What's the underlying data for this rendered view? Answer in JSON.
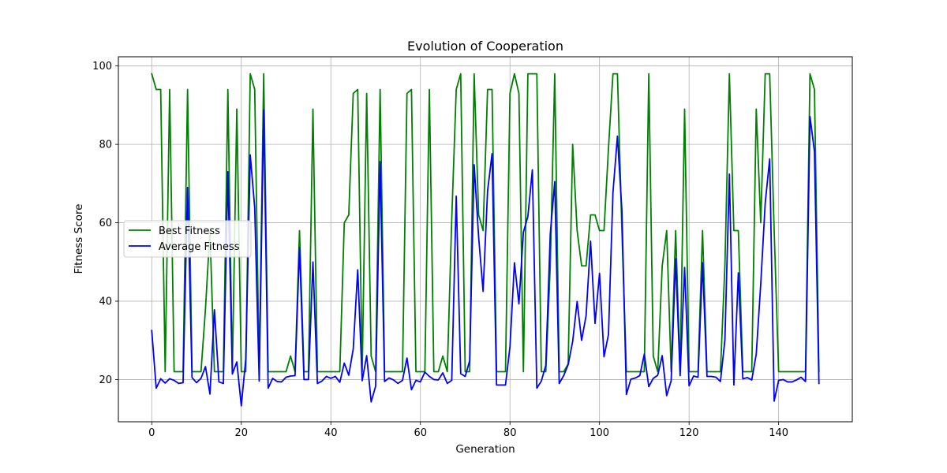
{
  "chart_data": {
    "type": "line",
    "title": "Evolution of Cooperation",
    "xlabel": "Generation",
    "ylabel": "Fitness Score",
    "xlim": [
      -7.45,
      156.45
    ],
    "ylim": [
      9.23,
      102.35
    ],
    "xticks": [
      0,
      20,
      40,
      60,
      80,
      100,
      120,
      140
    ],
    "yticks": [
      20,
      40,
      60,
      80,
      100
    ],
    "grid": true,
    "legend": {
      "placement": "center-left",
      "entries": [
        "Best Fitness",
        "Average Fitness"
      ]
    },
    "x": [
      0,
      1,
      2,
      3,
      4,
      5,
      6,
      7,
      8,
      9,
      10,
      11,
      12,
      13,
      14,
      15,
      16,
      17,
      18,
      19,
      20,
      21,
      22,
      23,
      24,
      25,
      26,
      27,
      28,
      29,
      30,
      31,
      32,
      33,
      34,
      35,
      36,
      37,
      38,
      39,
      40,
      41,
      42,
      43,
      44,
      45,
      46,
      47,
      48,
      49,
      50,
      51,
      52,
      53,
      54,
      55,
      56,
      57,
      58,
      59,
      60,
      61,
      62,
      63,
      64,
      65,
      66,
      67,
      68,
      69,
      70,
      71,
      72,
      73,
      74,
      75,
      76,
      77,
      78,
      79,
      80,
      81,
      82,
      83,
      84,
      85,
      86,
      87,
      88,
      89,
      90,
      91,
      92,
      93,
      94,
      95,
      96,
      97,
      98,
      99,
      100,
      101,
      102,
      103,
      104,
      105,
      106,
      107,
      108,
      109,
      110,
      111,
      112,
      113,
      114,
      115,
      116,
      117,
      118,
      119,
      120,
      121,
      122,
      123,
      124,
      125,
      126,
      127,
      128,
      129,
      130,
      131,
      132,
      133,
      134,
      135,
      136,
      137,
      138,
      139,
      140,
      141,
      142,
      143,
      144,
      145,
      146,
      147,
      148,
      149
    ],
    "series": [
      {
        "name": "Best Fitness",
        "color": "#008000",
        "values": [
          98,
          94,
          94,
          22,
          94,
          22,
          22,
          22,
          94,
          22,
          22,
          22,
          38,
          58,
          22,
          22,
          22,
          94,
          22,
          89,
          22,
          22,
          98,
          94,
          22,
          98,
          22,
          22,
          22,
          22,
          22,
          26,
          22,
          58,
          22,
          22,
          89,
          22,
          22,
          22,
          22,
          22,
          22,
          60,
          62,
          93,
          94,
          22,
          93,
          26,
          22,
          94,
          22,
          22,
          22,
          22,
          22,
          93,
          94,
          22,
          22,
          22,
          94,
          22,
          22,
          26,
          22,
          61,
          94,
          98,
          22,
          22,
          98,
          62,
          58,
          94,
          94,
          22,
          22,
          22,
          93,
          98,
          93,
          22,
          98,
          98,
          98,
          22,
          22,
          49,
          98,
          22,
          22,
          24,
          80,
          58,
          49,
          49,
          62,
          62,
          58,
          58,
          79,
          98,
          98,
          58,
          22,
          22,
          22,
          22,
          22,
          98,
          26,
          22,
          49,
          58,
          22,
          58,
          22,
          89,
          22,
          22,
          22,
          58,
          22,
          22,
          22,
          22,
          49,
          98,
          58,
          58,
          22,
          22,
          22,
          89,
          60,
          98,
          98,
          58,
          22,
          22,
          22,
          22,
          22,
          22,
          22,
          98,
          94,
          22
        ]
      },
      {
        "name": "Average Fitness",
        "color": "#0000ff",
        "values": [
          32.5,
          17.8,
          20.2,
          19.1,
          20.2,
          19.8,
          19.0,
          19.2,
          69.0,
          20.5,
          19.2,
          20.3,
          23.3,
          16.3,
          37.8,
          19.4,
          19.0,
          73.0,
          21.4,
          24.5,
          13.3,
          25.2,
          77.3,
          63.8,
          19.6,
          88.8,
          17.8,
          20.3,
          19.5,
          19.4,
          20.6,
          20.9,
          21.0,
          53.7,
          20.0,
          20.0,
          50.0,
          19.0,
          19.6,
          20.8,
          20.3,
          20.8,
          19.3,
          24.2,
          21.1,
          27.8,
          48.0,
          19.7,
          26.1,
          14.3,
          18.3,
          75.6,
          19.5,
          20.4,
          19.9,
          19.0,
          19.8,
          25.5,
          17.4,
          19.8,
          19.4,
          21.9,
          20.8,
          20.0,
          19.9,
          21.7,
          19.0,
          19.8,
          66.8,
          21.5,
          20.8,
          24.8,
          74.8,
          56.4,
          42.5,
          68.1,
          77.6,
          18.6,
          18.6,
          18.6,
          28.4,
          49.8,
          39.3,
          57.6,
          61.6,
          73.5,
          17.8,
          19.6,
          23.6,
          57.1,
          70.5,
          19.0,
          21.0,
          23.8,
          29.7,
          39.9,
          30.0,
          36.3,
          55.3,
          34.3,
          47.1,
          25.8,
          31.5,
          67.7,
          82.1,
          63.1,
          16.2,
          20.1,
          20.4,
          21.0,
          26.5,
          18.2,
          20.3,
          21.1,
          26.1,
          15.9,
          19.7,
          50.8,
          21.0,
          48.6,
          18.4,
          20.9,
          20.6,
          49.8,
          20.8,
          20.8,
          20.6,
          19.5,
          30.1,
          72.4,
          18.6,
          47.2,
          20.2,
          20.5,
          19.9,
          26.5,
          44.3,
          65.0,
          76.3,
          14.5,
          19.8,
          20.0,
          19.4,
          19.4,
          19.9,
          20.6,
          19.5,
          87.1,
          78.2,
          19.0
        ]
      }
    ]
  }
}
